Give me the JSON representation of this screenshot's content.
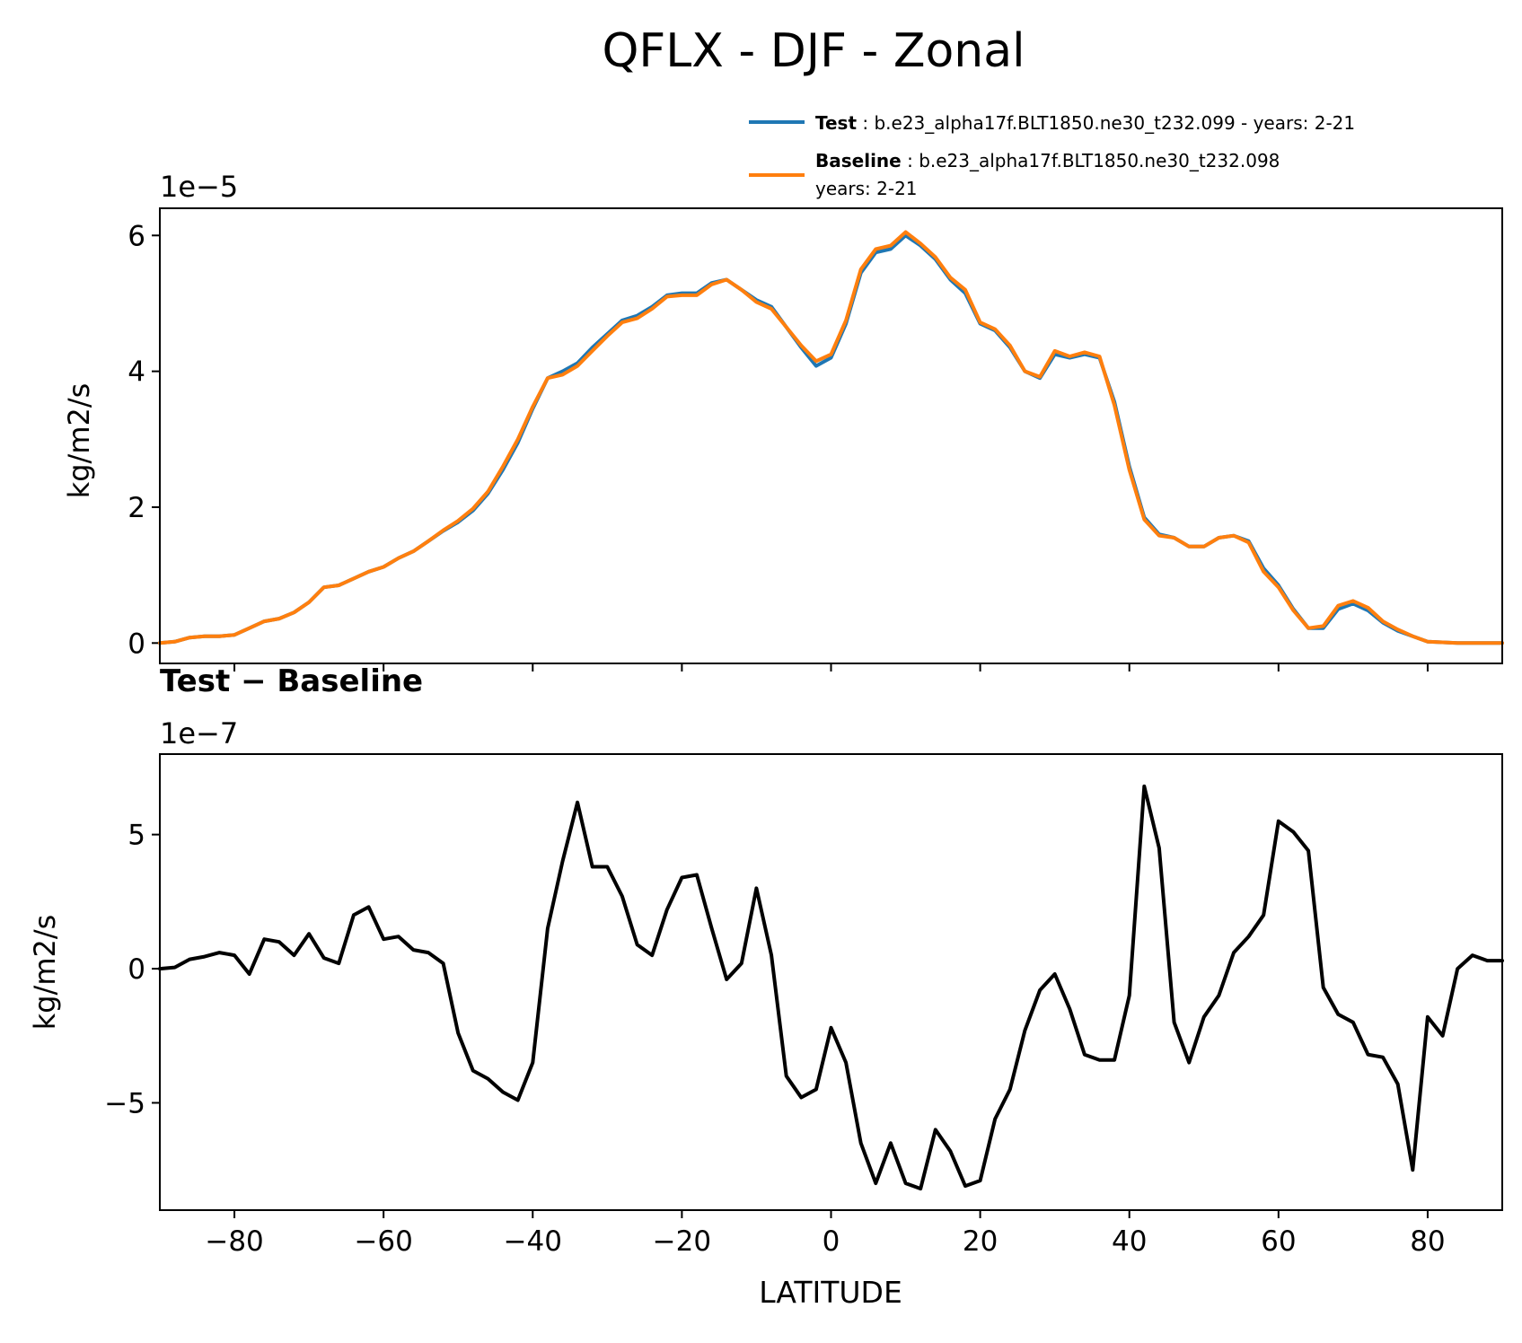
{
  "figure": {
    "title": "QFLX - DJF - Zonal"
  },
  "legend": {
    "test": {
      "name": "Test",
      "desc": ": b.e23_alpha17f.BLT1850.ne30_t232.099 - years: 2-21",
      "color": "#1f77b4"
    },
    "baseline": {
      "name": "Baseline",
      "desc": ": b.e23_alpha17f.BLT1850.ne30_t232.098",
      "desc2": "years: 2-21",
      "color": "#ff7f0e"
    }
  },
  "chart_data": [
    {
      "type": "line",
      "name": "top",
      "ylabel": "kg/m2/s",
      "offset_label": "1e−5",
      "xlim": [
        -90,
        90
      ],
      "ylim": [
        -0.3,
        6.4
      ],
      "xticks": [
        -80,
        -60,
        -40,
        -20,
        0,
        20,
        40,
        60,
        80
      ],
      "yticks": [
        0,
        2,
        4,
        6
      ],
      "ytick_labels": [
        "0",
        "2",
        "4",
        "6"
      ],
      "x": [
        -90,
        -88,
        -86,
        -84,
        -82,
        -80,
        -78,
        -76,
        -74,
        -72,
        -70,
        -68,
        -66,
        -64,
        -62,
        -60,
        -58,
        -56,
        -54,
        -52,
        -50,
        -48,
        -46,
        -44,
        -42,
        -40,
        -38,
        -36,
        -34,
        -32,
        -30,
        -28,
        -26,
        -24,
        -22,
        -20,
        -18,
        -16,
        -14,
        -12,
        -10,
        -8,
        -6,
        -4,
        -2,
        0,
        2,
        4,
        6,
        8,
        10,
        12,
        14,
        16,
        18,
        20,
        22,
        24,
        26,
        28,
        30,
        32,
        34,
        36,
        38,
        40,
        42,
        44,
        46,
        48,
        50,
        52,
        54,
        56,
        58,
        60,
        62,
        64,
        66,
        68,
        70,
        72,
        74,
        76,
        78,
        80,
        82,
        84,
        86,
        88,
        90
      ],
      "series": [
        {
          "name": "Test",
          "color": "#1f77b4",
          "values": [
            0.0,
            0.02,
            0.08,
            0.1,
            0.1,
            0.12,
            0.22,
            0.32,
            0.36,
            0.45,
            0.6,
            0.82,
            0.85,
            0.95,
            1.05,
            1.12,
            1.25,
            1.35,
            1.5,
            1.65,
            1.78,
            1.95,
            2.2,
            2.55,
            2.95,
            3.45,
            3.9,
            4.0,
            4.12,
            4.35,
            4.55,
            4.75,
            4.82,
            4.95,
            5.12,
            5.15,
            5.15,
            5.3,
            5.35,
            5.2,
            5.05,
            4.95,
            4.65,
            4.35,
            4.08,
            4.2,
            4.7,
            5.45,
            5.75,
            5.8,
            6.0,
            5.85,
            5.65,
            5.35,
            5.15,
            4.7,
            4.6,
            4.35,
            4.0,
            3.9,
            4.25,
            4.2,
            4.25,
            4.2,
            3.55,
            2.6,
            1.85,
            1.6,
            1.55,
            1.42,
            1.42,
            1.55,
            1.58,
            1.5,
            1.1,
            0.85,
            0.5,
            0.22,
            0.22,
            0.5,
            0.58,
            0.48,
            0.3,
            0.18,
            0.1,
            0.02,
            0.01,
            0.0,
            0.0,
            0.0,
            0.0
          ]
        },
        {
          "name": "Baseline",
          "color": "#ff7f0e",
          "values": [
            0.0,
            0.02,
            0.08,
            0.1,
            0.1,
            0.12,
            0.22,
            0.32,
            0.36,
            0.45,
            0.6,
            0.82,
            0.85,
            0.95,
            1.05,
            1.12,
            1.25,
            1.35,
            1.5,
            1.66,
            1.8,
            1.98,
            2.23,
            2.6,
            3.0,
            3.48,
            3.9,
            3.95,
            4.08,
            4.3,
            4.52,
            4.72,
            4.78,
            4.92,
            5.1,
            5.12,
            5.12,
            5.28,
            5.35,
            5.2,
            5.02,
            4.92,
            4.65,
            4.38,
            4.15,
            4.25,
            4.75,
            5.5,
            5.8,
            5.85,
            6.05,
            5.88,
            5.68,
            5.38,
            5.2,
            4.72,
            4.62,
            4.38,
            4.0,
            3.92,
            4.3,
            4.22,
            4.28,
            4.22,
            3.5,
            2.55,
            1.82,
            1.58,
            1.55,
            1.42,
            1.42,
            1.55,
            1.58,
            1.48,
            1.05,
            0.82,
            0.48,
            0.22,
            0.25,
            0.55,
            0.62,
            0.52,
            0.32,
            0.2,
            0.1,
            0.02,
            0.01,
            0.0,
            0.0,
            0.0,
            0.0
          ]
        }
      ]
    },
    {
      "type": "line",
      "name": "bottom",
      "title": "Test − Baseline",
      "ylabel": "kg/m2/s",
      "xlabel": "LATITUDE",
      "offset_label": "1e−7",
      "xlim": [
        -90,
        90
      ],
      "ylim": [
        -9,
        8
      ],
      "xticks": [
        -80,
        -60,
        -40,
        -20,
        0,
        20,
        40,
        60,
        80
      ],
      "xtick_labels": [
        "−80",
        "−60",
        "−40",
        "−20",
        "0",
        "20",
        "40",
        "60",
        "80"
      ],
      "yticks": [
        -5,
        0,
        5
      ],
      "ytick_labels": [
        "−5",
        "0",
        "5"
      ],
      "x": [
        -90,
        -88,
        -86,
        -84,
        -82,
        -80,
        -78,
        -76,
        -74,
        -72,
        -70,
        -68,
        -66,
        -64,
        -62,
        -60,
        -58,
        -56,
        -54,
        -52,
        -50,
        -48,
        -46,
        -44,
        -42,
        -40,
        -38,
        -36,
        -34,
        -32,
        -30,
        -28,
        -26,
        -24,
        -22,
        -20,
        -18,
        -16,
        -14,
        -12,
        -10,
        -8,
        -6,
        -4,
        -2,
        0,
        2,
        4,
        6,
        8,
        10,
        12,
        14,
        16,
        18,
        20,
        22,
        24,
        26,
        28,
        30,
        32,
        34,
        36,
        38,
        40,
        42,
        44,
        46,
        48,
        50,
        52,
        54,
        56,
        58,
        60,
        62,
        64,
        66,
        68,
        70,
        72,
        74,
        76,
        78,
        80,
        82,
        84,
        86,
        88,
        90
      ],
      "series": [
        {
          "name": "Test − Baseline",
          "color": "#000000",
          "values": [
            0.0,
            0.05,
            0.35,
            0.45,
            0.6,
            0.5,
            -0.2,
            1.1,
            1.0,
            0.5,
            1.3,
            0.4,
            0.2,
            2.0,
            2.3,
            1.1,
            1.2,
            0.7,
            0.6,
            0.2,
            -2.4,
            -3.8,
            -4.1,
            -4.6,
            -4.9,
            -3.5,
            1.5,
            4.0,
            6.2,
            3.8,
            3.8,
            2.7,
            0.9,
            0.5,
            2.2,
            3.4,
            3.5,
            1.5,
            -0.4,
            0.2,
            3.0,
            0.5,
            -4.0,
            -4.8,
            -4.5,
            -2.2,
            -3.5,
            -6.5,
            -8.0,
            -6.5,
            -8.0,
            -8.2,
            -6.0,
            -6.8,
            -8.1,
            -7.9,
            -5.6,
            -4.5,
            -2.3,
            -0.8,
            -0.2,
            -1.5,
            -3.2,
            -3.4,
            -3.4,
            -1.0,
            6.8,
            4.5,
            -2.0,
            -3.5,
            -1.8,
            -1.0,
            0.6,
            1.2,
            2.0,
            5.5,
            5.1,
            4.4,
            -0.7,
            -1.7,
            -2.0,
            -3.2,
            -3.3,
            -4.3,
            -7.5,
            -1.8,
            -2.5,
            0.0,
            0.5,
            0.3,
            0.3
          ]
        }
      ]
    }
  ]
}
